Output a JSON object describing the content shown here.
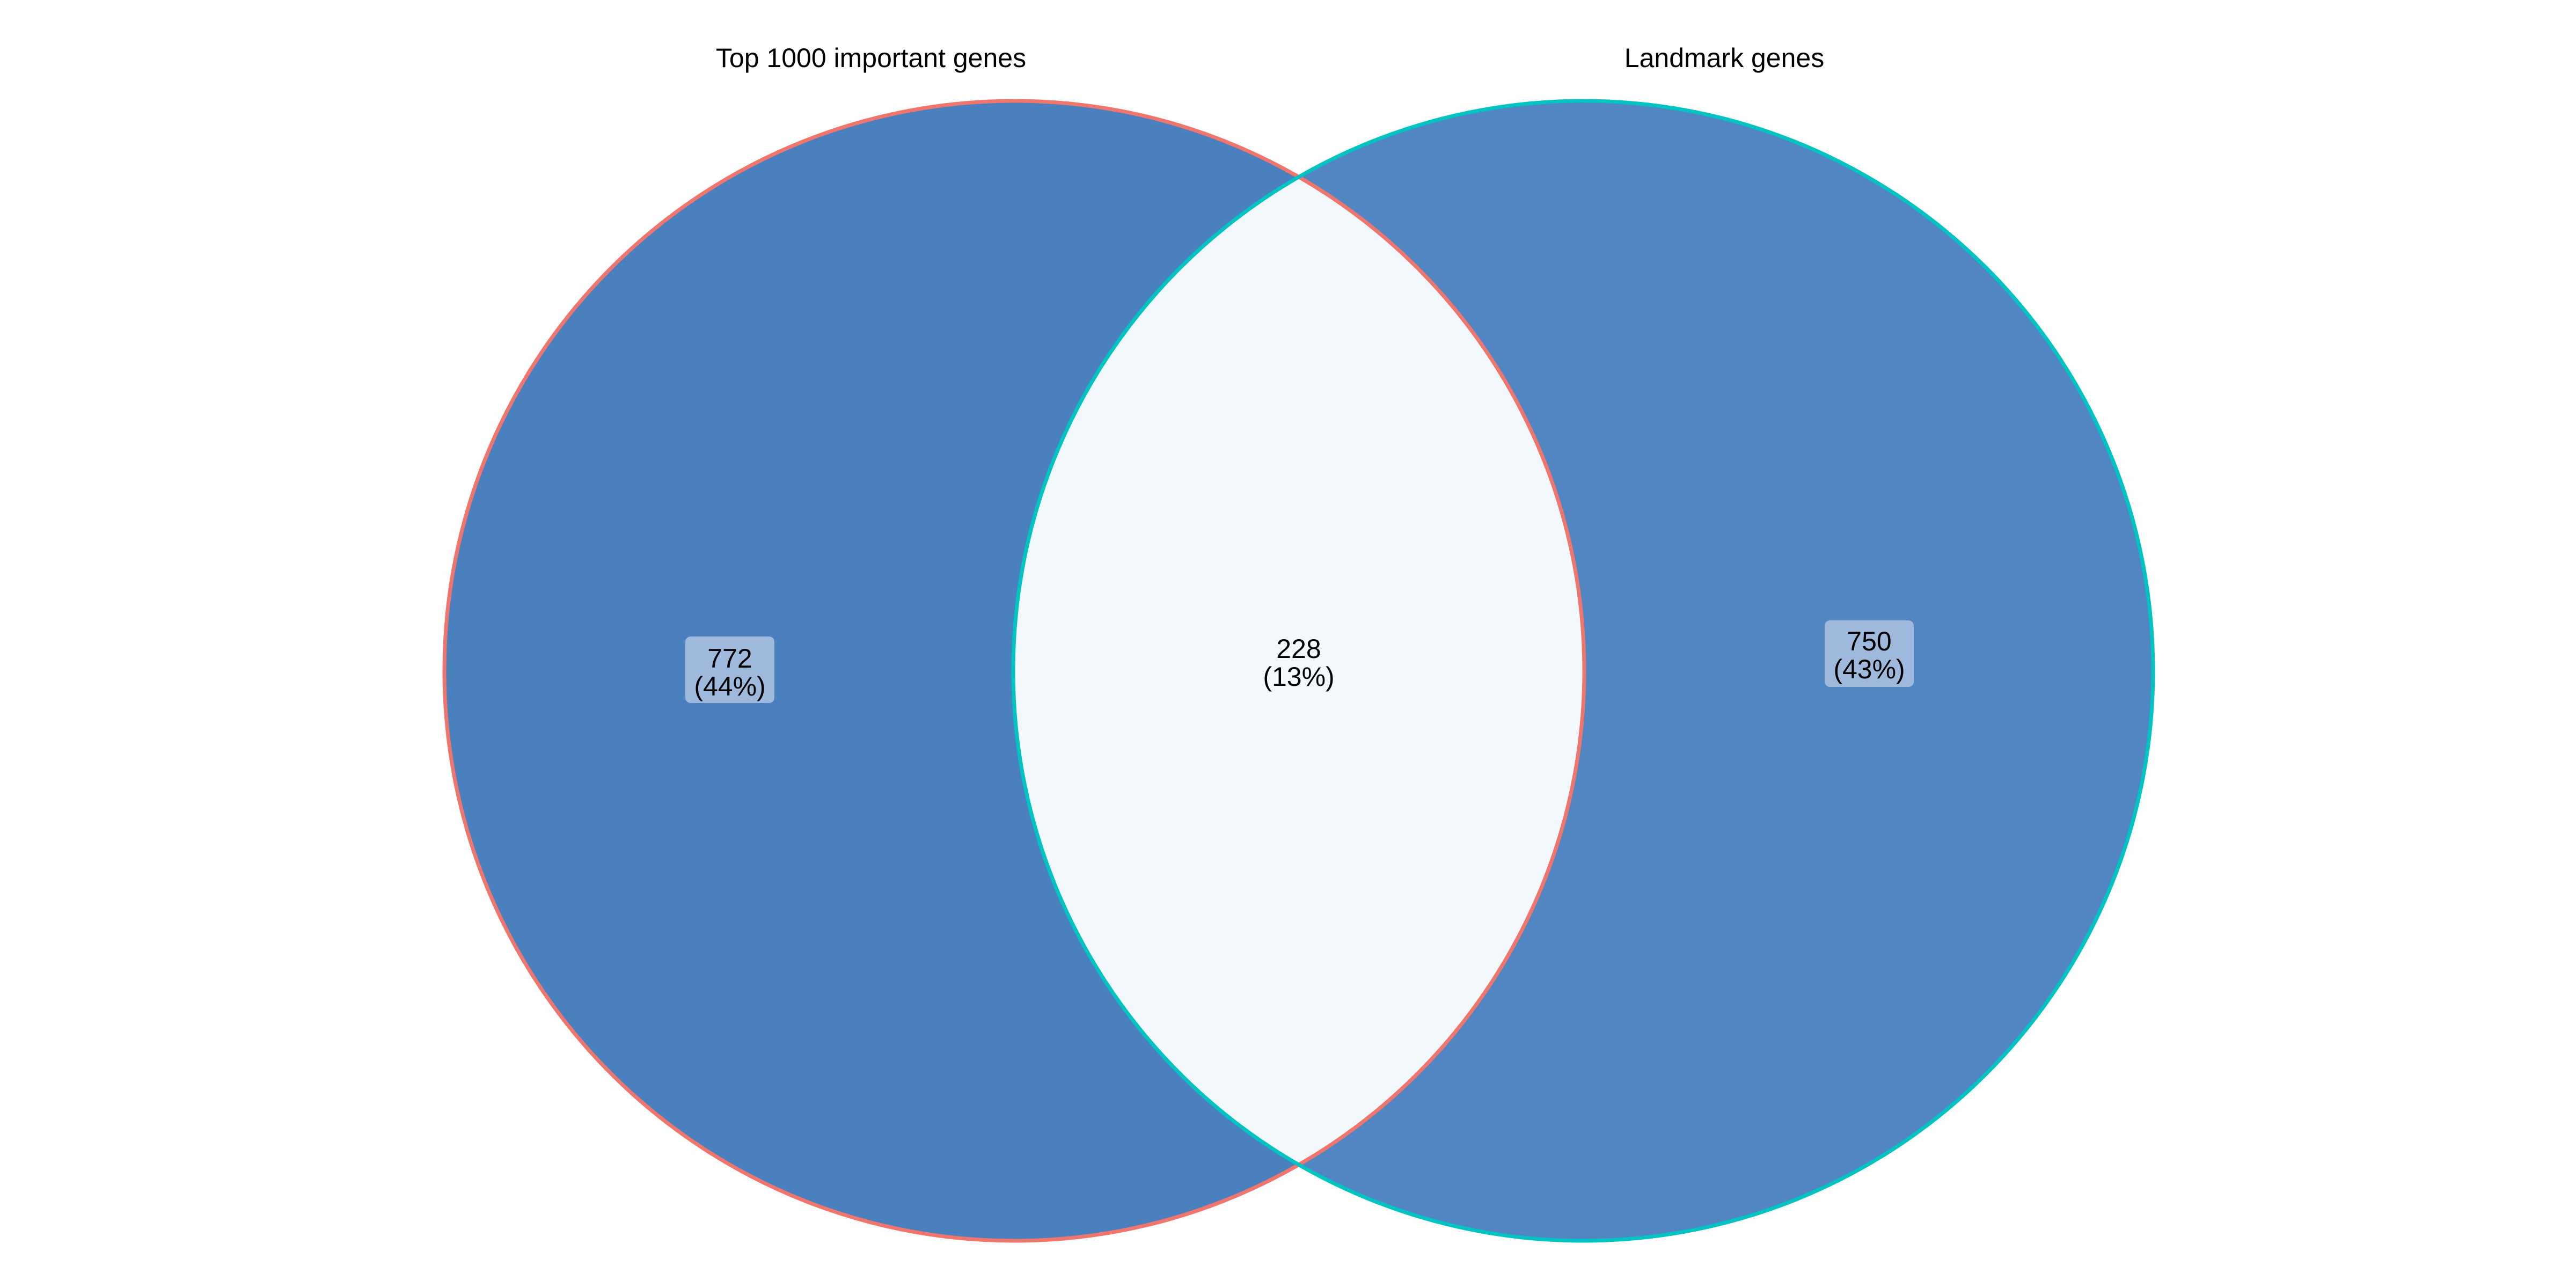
{
  "sets": [
    {
      "name": "Top 1000 important genes",
      "fill": "#4a80be",
      "stroke": "#f0766d"
    },
    {
      "name": "Landmark genes",
      "fill": "#5186c2",
      "stroke": "#00c4c2"
    }
  ],
  "regions": {
    "only_a": {
      "count": "772",
      "percent": "(44%)"
    },
    "both": {
      "count": "228",
      "percent": "(13%)",
      "fill": "#f3f8fc"
    },
    "only_b": {
      "count": "750",
      "percent": "(43%)"
    }
  },
  "label_box_color": "#9fb9dc"
}
